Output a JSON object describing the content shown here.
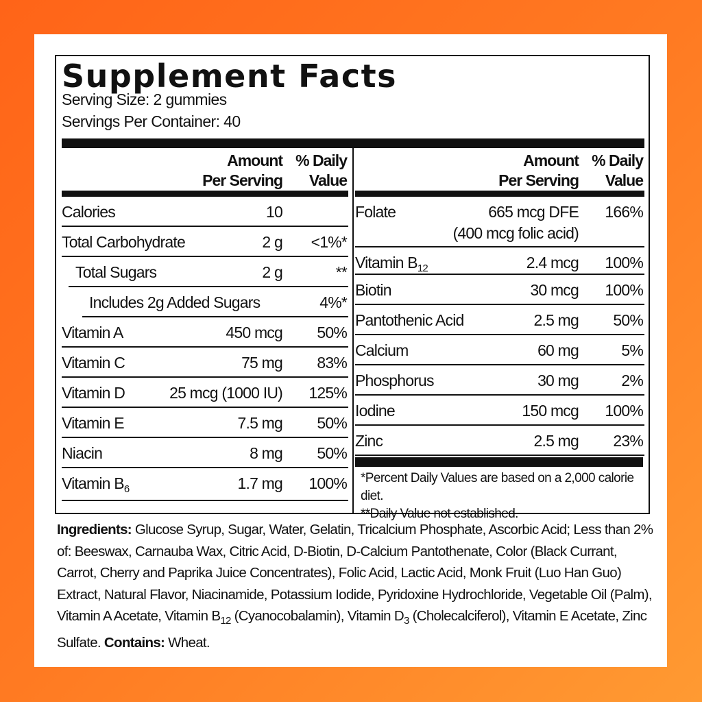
{
  "title": "Supplement Facts",
  "serving_size": "Serving Size:  2 gummies",
  "servings_per_container": "Servings Per Container: 40",
  "header": {
    "amount_line1": "Amount",
    "amount_line2": "Per Serving",
    "dv_line1": "% Daily",
    "dv_line2": "Value"
  },
  "left_rows": [
    {
      "name": "Calories",
      "amount": "10",
      "dv": "",
      "indent": 0
    },
    {
      "name": "Total Carbohydrate",
      "amount": "2 g",
      "dv": "<1%*",
      "indent": 0
    },
    {
      "name": "Total Sugars",
      "amount": "2 g",
      "dv": "**",
      "indent": 1
    },
    {
      "name": "Includes 2g Added Sugars",
      "amount": "",
      "dv": "4%*",
      "indent": 2
    },
    {
      "name": "Vitamin A",
      "amount": "450 mcg",
      "dv": "50%",
      "indent": 0
    },
    {
      "name": "Vitamin C",
      "amount": "75 mg",
      "dv": "83%",
      "indent": 0
    },
    {
      "name": "Vitamin D",
      "amount": "25 mcg (1000 IU)",
      "dv": "125%",
      "indent": 0
    },
    {
      "name": "Vitamin E",
      "amount": "7.5 mg",
      "dv": "50%",
      "indent": 0
    },
    {
      "name": "Niacin",
      "amount": "8 mg",
      "dv": "50%",
      "indent": 0
    },
    {
      "name": "Vitamin B",
      "sub": "6",
      "amount": "1.7 mg",
      "dv": "100%",
      "indent": 0
    }
  ],
  "right_rows": [
    {
      "name": "Folate",
      "amount": "665 mcg DFE",
      "amount_line2": "(400 mcg folic acid)",
      "dv": "166%"
    },
    {
      "name": "Vitamin B",
      "sub": "12",
      "amount": "2.4 mcg",
      "dv": "100%"
    },
    {
      "name": "Biotin",
      "amount": "30 mcg",
      "dv": "100%"
    },
    {
      "name": "Pantothenic Acid",
      "amount": "2.5 mg",
      "dv": "50%"
    },
    {
      "name": "Calcium",
      "amount": "60 mg",
      "dv": "5%"
    },
    {
      "name": "Phosphorus",
      "amount": "30 mg",
      "dv": "2%"
    },
    {
      "name": "Iodine",
      "amount": "150 mcg",
      "dv": "100%"
    },
    {
      "name": "Zinc",
      "amount": "2.5 mg",
      "dv": "23%"
    }
  ],
  "footnotes": [
    "*Percent Daily Values are based on a 2,000 calorie diet.",
    "**Daily Value not established."
  ],
  "ingredients": {
    "label": "Ingredients:",
    "text1": " Glucose Syrup, Sugar, Water, Gelatin, Tricalcium Phosphate, Ascorbic Acid; Less than 2% of: Beeswax, Carnauba Wax, Citric Acid, D-Biotin, D-Calcium Pantothenate, Color (Black Currant, Carrot, Cherry and Paprika Juice Concentrates), Folic Acid, Lactic Acid, Monk Fruit (Luo Han Guo) Extract, Natural Flavor, Niacinamide, Potassium Iodide, Pyridoxine Hydrochloride, Vegetable Oil (Palm), Vitamin A Acetate, Vitamin B",
    "sub1": "12",
    "text2": " (Cyanocobalamin), Vitamin D",
    "sub2": "3",
    "text3": " (Cholecalciferol), Vitamin E Acetate, Zinc Sulfate. ",
    "contains_label": "Contains:",
    "contains": " Wheat."
  }
}
